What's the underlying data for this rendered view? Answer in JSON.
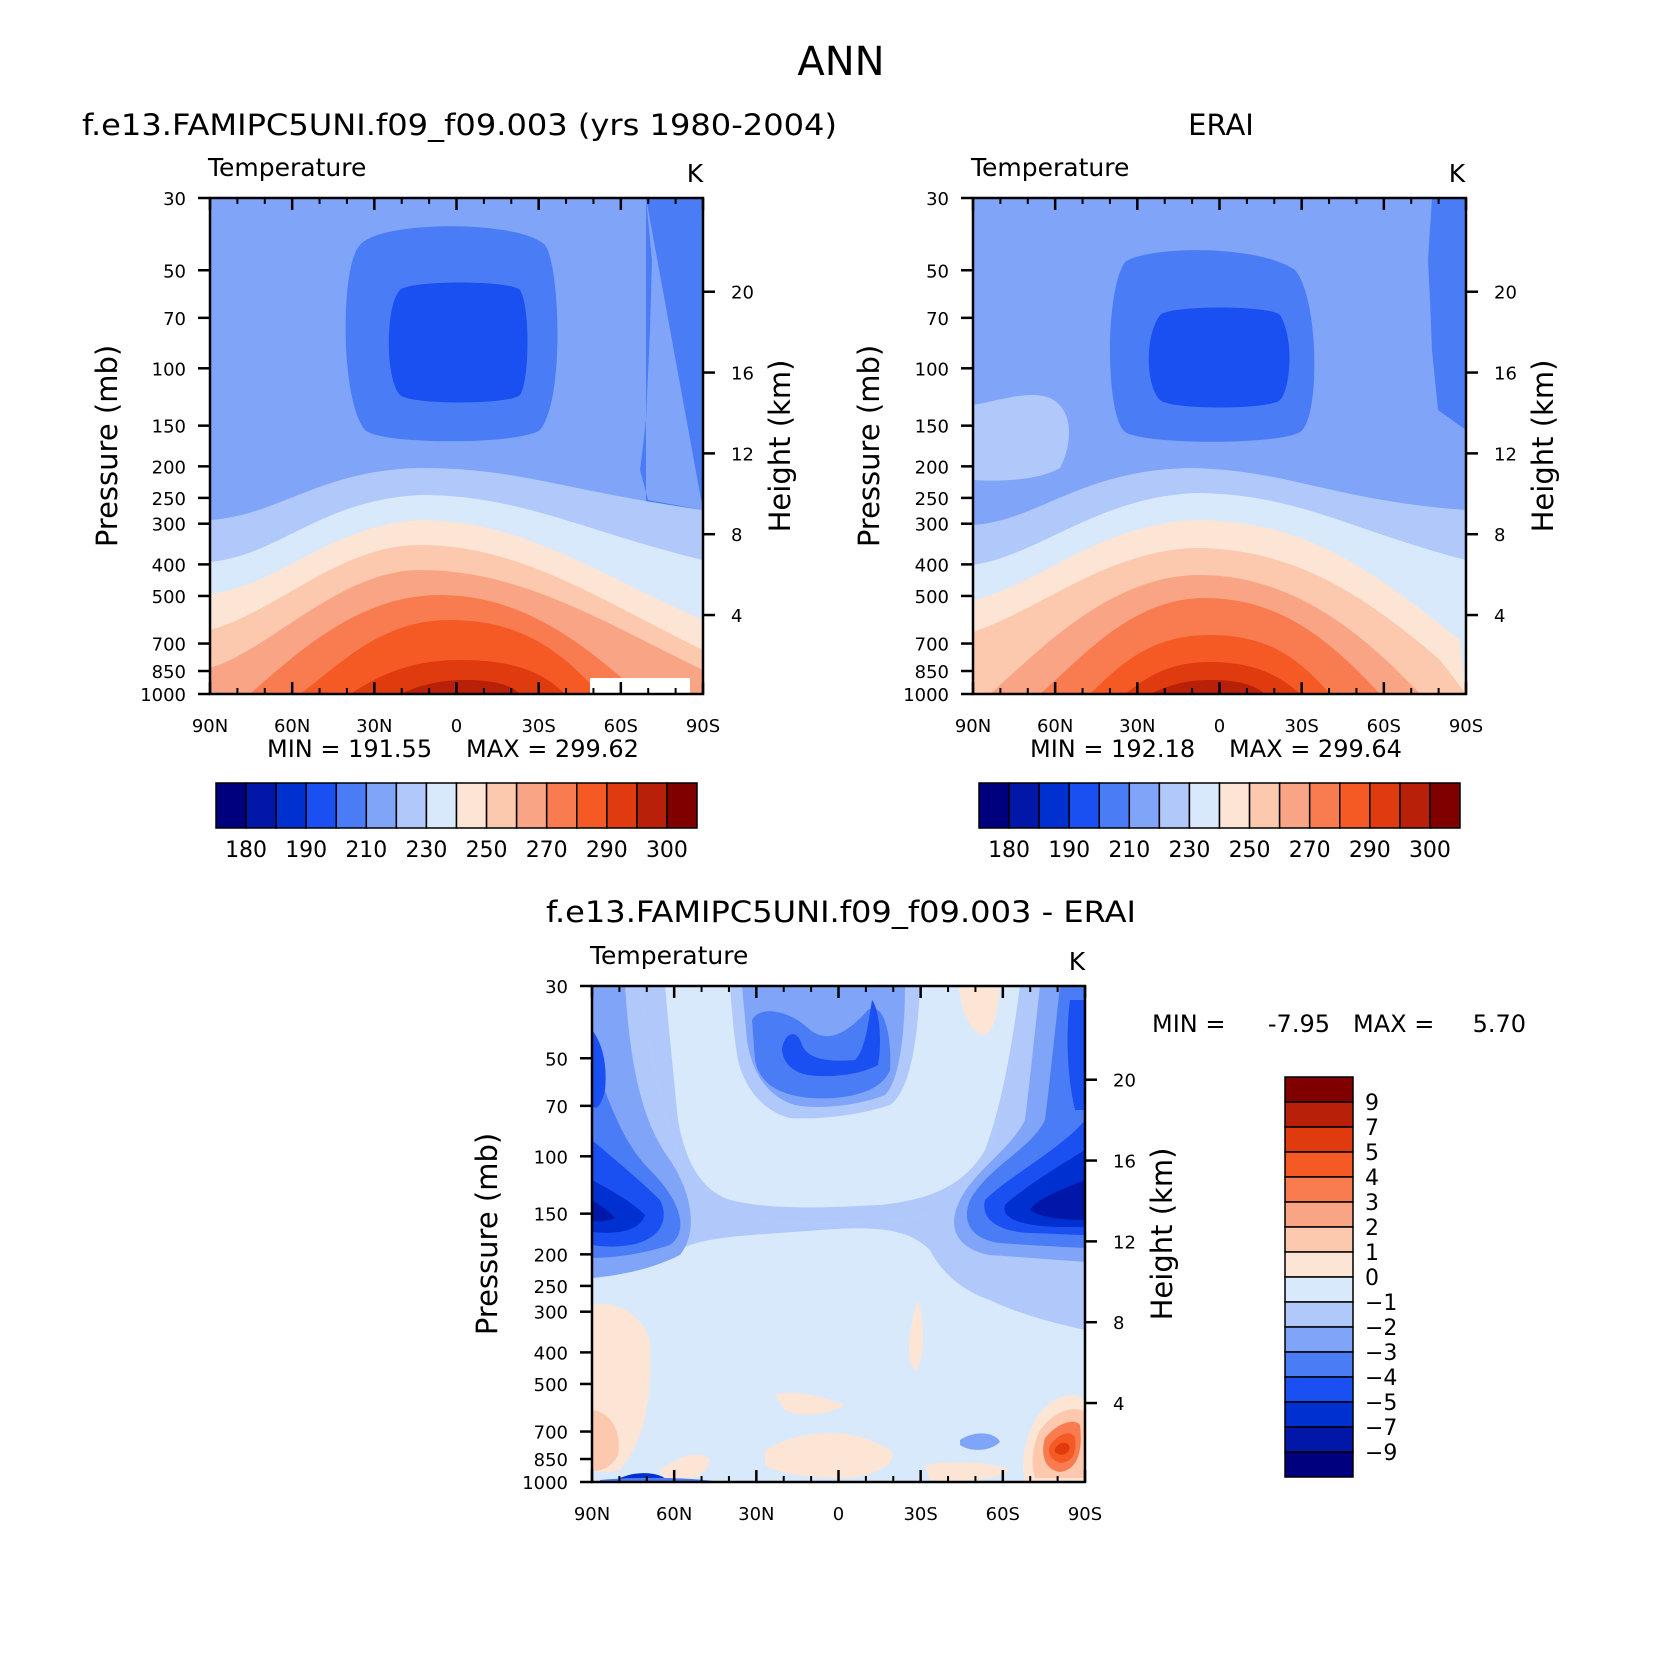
{
  "figure": {
    "title": "ANN"
  },
  "panel_titles": {
    "model": "f.e13.FAMIPC5UNI.f09_f09.003 (yrs 1980-2004)",
    "obs": "ERAI",
    "diff": "f.e13.FAMIPC5UNI.f09_f09.003 - ERAI"
  },
  "colors": {
    "abs_levels": [
      "#00007f",
      "#0017a8",
      "#0030d0",
      "#1a50f2",
      "#4a7df5",
      "#80a5f8",
      "#b0c8fa",
      "#d8e9fb",
      "#fde5d5",
      "#fcc8ae",
      "#f9a585",
      "#f97c50",
      "#f55a25",
      "#e03a0f",
      "#b8200a",
      "#800000"
    ],
    "diff_levels": [
      "#00007f",
      "#0017a8",
      "#0030d0",
      "#1a50f2",
      "#4a7df5",
      "#80a5f8",
      "#b0c8fa",
      "#d8e9fb",
      "#fde5d5",
      "#fcc8ae",
      "#f9a585",
      "#f97c50",
      "#f55a25",
      "#e03a0f",
      "#b8200a",
      "#800000"
    ]
  },
  "chart_data": [
    {
      "type": "heatmap",
      "id": "model",
      "title": "f.e13.FAMIPC5UNI.f09_f09.003 (yrs 1980-2004)",
      "left_label": "Temperature",
      "units_label": "K",
      "xlabel": "",
      "ylabel": "Pressure (mb)",
      "ylabel_right": "Height (km)",
      "x_ticks": [
        "90N",
        "60N",
        "30N",
        "0",
        "30S",
        "60S",
        "90S"
      ],
      "y_ticks": [
        "30",
        "50",
        "70",
        "100",
        "150",
        "200",
        "250",
        "300",
        "400",
        "500",
        "700",
        "850",
        "1000"
      ],
      "y_ticks_right": [
        "20",
        "16",
        "12",
        "8",
        "4"
      ],
      "ylim": [
        1000,
        30
      ],
      "log_scale_y": true,
      "stats": {
        "min_label": "MIN = 191.55",
        "max_label": "MAX = 299.62",
        "min": 191.55,
        "max": 299.62
      },
      "colorbar": {
        "ticks": [
          "180",
          "190",
          "210",
          "230",
          "250",
          "270",
          "290",
          "300"
        ]
      }
    },
    {
      "type": "heatmap",
      "id": "obs",
      "title": "ERAI",
      "left_label": "Temperature",
      "units_label": "K",
      "xlabel": "",
      "ylabel": "Pressure (mb)",
      "ylabel_right": "Height (km)",
      "x_ticks": [
        "90N",
        "60N",
        "30N",
        "0",
        "30S",
        "60S",
        "90S"
      ],
      "y_ticks": [
        "30",
        "50",
        "70",
        "100",
        "150",
        "200",
        "250",
        "300",
        "400",
        "500",
        "700",
        "850",
        "1000"
      ],
      "y_ticks_right": [
        "20",
        "16",
        "12",
        "8",
        "4"
      ],
      "ylim": [
        1000,
        30
      ],
      "log_scale_y": true,
      "stats": {
        "min_label": "MIN = 192.18",
        "max_label": "MAX = 299.64",
        "min": 192.18,
        "max": 299.64
      },
      "colorbar": {
        "ticks": [
          "180",
          "190",
          "210",
          "230",
          "250",
          "270",
          "290",
          "300"
        ]
      }
    },
    {
      "type": "heatmap",
      "id": "diff",
      "title": "f.e13.FAMIPC5UNI.f09_f09.003 - ERAI",
      "left_label": "Temperature",
      "units_label": "K",
      "xlabel": "",
      "ylabel": "Pressure (mb)",
      "ylabel_right": "Height (km)",
      "x_ticks": [
        "90N",
        "60N",
        "30N",
        "0",
        "30S",
        "60S",
        "90S"
      ],
      "y_ticks": [
        "30",
        "50",
        "70",
        "100",
        "150",
        "200",
        "250",
        "300",
        "400",
        "500",
        "700",
        "850",
        "1000"
      ],
      "y_ticks_right": [
        "20",
        "16",
        "12",
        "8",
        "4"
      ],
      "ylim": [
        1000,
        30
      ],
      "log_scale_y": true,
      "stats": {
        "min_label": "MIN =",
        "min_value": "-7.95",
        "max_label": "MAX =",
        "max_value": "5.70",
        "min": -7.95,
        "max": 5.7
      },
      "colorbar": {
        "ticks": [
          "9",
          "7",
          "5",
          "4",
          "3",
          "2",
          "1",
          "0",
          "-1",
          "-2",
          "-3",
          "-4",
          "-5",
          "-7",
          "-9"
        ]
      }
    }
  ]
}
